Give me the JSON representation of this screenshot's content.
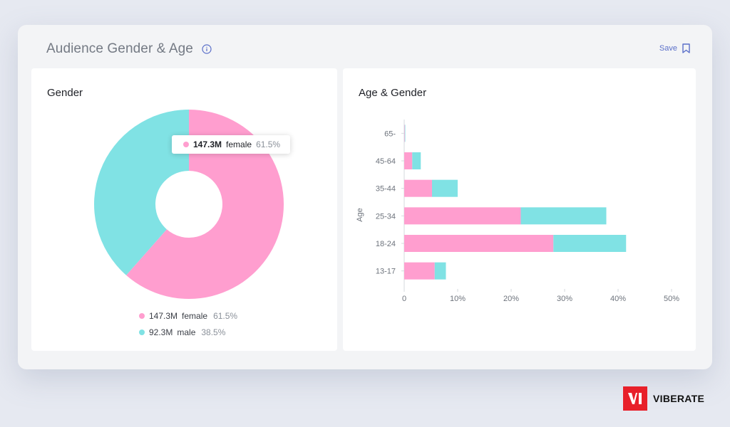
{
  "header": {
    "title": "Audience Gender & Age",
    "save_label": "Save"
  },
  "gender_panel": {
    "title": "Gender",
    "tooltip": {
      "value": "147.3M",
      "label": "female",
      "percent": "61.5%"
    },
    "legend": [
      {
        "value": "147.3M",
        "label": "female",
        "percent": "61.5%",
        "color": "#ff9ecf"
      },
      {
        "value": "92.3M",
        "label": "male",
        "percent": "38.5%",
        "color": "#80e2e4"
      }
    ]
  },
  "age_panel": {
    "title": "Age & Gender"
  },
  "brand": {
    "name": "VIBERATE"
  },
  "colors": {
    "female": "#ff9ecf",
    "male": "#80e2e4",
    "accent": "#5a6fc9"
  },
  "chart_data": [
    {
      "type": "pie",
      "title": "Gender",
      "categories": [
        "female",
        "male"
      ],
      "values": [
        61.5,
        38.5
      ],
      "labels": [
        "147.3M female 61.5%",
        "92.3M male 38.5%"
      ]
    },
    {
      "type": "bar",
      "orientation": "horizontal",
      "stacked": true,
      "title": "Age & Gender",
      "ylabel": "Age",
      "categories": [
        "65-",
        "45-64",
        "35-44",
        "25-34",
        "18-24",
        "13-17"
      ],
      "series": [
        {
          "values": [
            0.1,
            1.5,
            5.2,
            21.8,
            27.9,
            5.7
          ]
        },
        {
          "values": [
            0.1,
            1.6,
            4.8,
            16.0,
            13.6,
            2.1
          ]
        }
      ],
      "xlim": [
        0,
        50
      ],
      "xticks": [
        "0",
        "10%",
        "20%",
        "30%",
        "40%",
        "50%"
      ]
    }
  ]
}
